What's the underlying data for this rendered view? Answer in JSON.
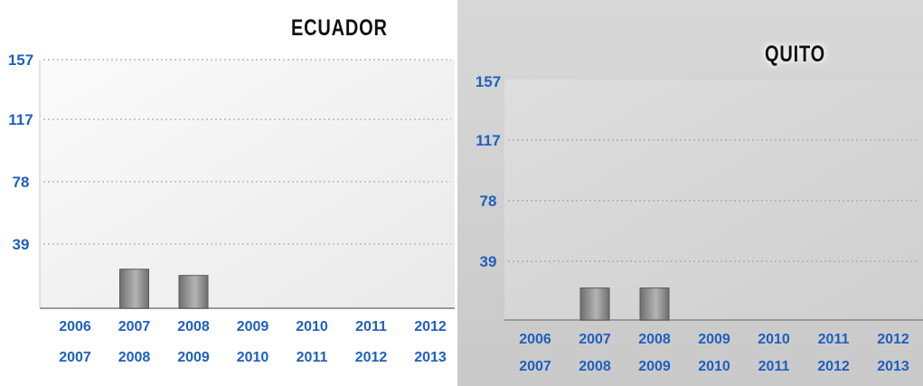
{
  "chart_data": [
    {
      "type": "bar",
      "title": "ECUADOR",
      "categories": [
        [
          "2006",
          "2007"
        ],
        [
          "2007",
          "2008"
        ],
        [
          "2008",
          "2009"
        ],
        [
          "2009",
          "2010"
        ],
        [
          "2010",
          "2011"
        ],
        [
          "2011",
          "2012"
        ],
        [
          "2012",
          "2013"
        ]
      ],
      "values": [
        0,
        25,
        21,
        0,
        0,
        0,
        0
      ],
      "yticks": [
        "39",
        "78",
        "117",
        "157"
      ],
      "ylim": [
        0,
        157
      ],
      "grid": true,
      "colors": {
        "bar_dark": "#6e6e6e",
        "bar_light": "#b4b4b4",
        "tick": "#1f5fbf",
        "grid": "#c8c8c8"
      }
    },
    {
      "type": "bar",
      "title": "QUITO",
      "categories": [
        [
          "2006",
          "2007"
        ],
        [
          "2007",
          "2008"
        ],
        [
          "2008",
          "2009"
        ],
        [
          "2009",
          "2010"
        ],
        [
          "2010",
          "2011"
        ],
        [
          "2011",
          "2012"
        ],
        [
          "2012",
          "2013"
        ]
      ],
      "values": [
        0,
        21,
        21,
        0,
        0,
        0,
        0
      ],
      "yticks": [
        "39",
        "78",
        "117",
        "157"
      ],
      "ylim": [
        0,
        157
      ],
      "grid": true,
      "colors": {
        "bar_dark": "#6e6e6e",
        "bar_light": "#b4b4b4",
        "tick": "#1f5fbf",
        "grid": "#b8b8b8"
      }
    }
  ]
}
